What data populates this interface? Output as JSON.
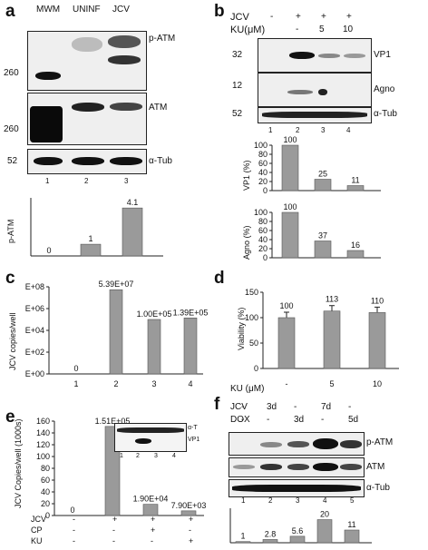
{
  "panels": {
    "a": {
      "letter": "a",
      "lanes_top": [
        "MWM",
        "UNINF",
        "JCV"
      ],
      "markers": [
        "260",
        "260",
        "52"
      ],
      "right_labels": [
        "p-ATM",
        "ATM",
        "α-Tub"
      ],
      "lane_numbers": [
        "1",
        "2",
        "3"
      ],
      "chart_data": {
        "type": "bar",
        "categories": [
          "1",
          "2",
          "3"
        ],
        "values": [
          0,
          1,
          4.1
        ],
        "value_labels": [
          "0",
          "1",
          "4.1"
        ],
        "ylabel": "p-ATM",
        "ylim": [
          0,
          4.5
        ]
      }
    },
    "b": {
      "letter": "b",
      "row1_label": "JCV",
      "row1_vals": [
        "-",
        "+",
        "+",
        "+"
      ],
      "row2_label": "KU(μM)",
      "row2_vals": [
        "",
        "-",
        "5",
        "10"
      ],
      "markers": [
        "32",
        "12",
        "52"
      ],
      "right_labels": [
        "VP1",
        "Agno",
        "α-Tub"
      ],
      "lane_numbers": [
        "1",
        "2",
        "3",
        "4"
      ],
      "chart_vp1": {
        "type": "bar",
        "categories": [
          "2",
          "3",
          "4"
        ],
        "values": [
          100,
          25,
          11
        ],
        "value_labels": [
          "100",
          "25",
          "11"
        ],
        "ylabel": "VP1 (%)",
        "yticks": [
          "100",
          "80",
          "60",
          "40",
          "20",
          "0"
        ],
        "ylim": [
          0,
          100
        ]
      },
      "chart_agno": {
        "type": "bar",
        "categories": [
          "2",
          "3",
          "4"
        ],
        "values": [
          100,
          37,
          16
        ],
        "value_labels": [
          "100",
          "37",
          "16"
        ],
        "ylabel": "Agno (%)",
        "yticks": [
          "100",
          "80",
          "60",
          "40",
          "20",
          "0"
        ],
        "ylim": [
          0,
          100
        ]
      }
    },
    "c": {
      "letter": "c",
      "chart_data": {
        "type": "bar",
        "categories": [
          "1",
          "2",
          "3",
          "4"
        ],
        "values": [
          0,
          53900000,
          100000,
          139000
        ],
        "value_labels": [
          "0",
          "5.39E+07",
          "1.00E+05",
          "1.39E+05"
        ],
        "ylabel": "JCV copies/well",
        "yticks": [
          "E+08",
          "E+06",
          "E+04",
          "E+02",
          "E+00"
        ],
        "scale": "log",
        "ylim": [
          1,
          100000000
        ]
      }
    },
    "d": {
      "letter": "d",
      "chart_data": {
        "type": "bar",
        "categories": [
          "-",
          "5",
          "10"
        ],
        "values": [
          100,
          113,
          110
        ],
        "value_labels": [
          "100",
          "113",
          "110"
        ],
        "ylabel": "Viability (%)",
        "xlabel": "KU (μM)",
        "yticks": [
          "150",
          "100",
          "50",
          "0"
        ],
        "ylim": [
          0,
          150
        ]
      }
    },
    "e": {
      "letter": "e",
      "chart_data": {
        "type": "bar",
        "categories": [
          "1",
          "2",
          "3",
          "4"
        ],
        "values": [
          0,
          151,
          19,
          7.9
        ],
        "value_labels": [
          "0",
          "1.51E+05",
          "1.90E+04",
          "7.90E+03"
        ],
        "ylabel": "JCV Copies/well (1000s)",
        "yticks": [
          "160",
          "140",
          "120",
          "100",
          "80",
          "60",
          "40",
          "20",
          "0"
        ],
        "ylim": [
          0,
          160
        ]
      },
      "rows": [
        {
          "label": "JCV",
          "vals": [
            "-",
            "+",
            "+",
            "+"
          ]
        },
        {
          "label": "CP",
          "vals": [
            "-",
            "-",
            "+",
            "-"
          ]
        },
        {
          "label": "KU",
          "vals": [
            "-",
            "-",
            "-",
            "+"
          ]
        }
      ],
      "inset": {
        "labels": [
          "α-T",
          "VP1"
        ],
        "lanes": [
          "1",
          "2",
          "3",
          "4"
        ]
      }
    },
    "f": {
      "letter": "f",
      "rows": [
        {
          "label": "JCV",
          "vals": [
            "-",
            "3d",
            "-",
            "7d",
            "-"
          ]
        },
        {
          "label": "DOX",
          "vals": [
            "-",
            "-",
            "3d",
            "-",
            "5d"
          ]
        }
      ],
      "right_labels": [
        "p-ATM",
        "ATM",
        "α-Tub"
      ],
      "lane_numbers": [
        "1",
        "2",
        "3",
        "4",
        "5"
      ],
      "chart_data": {
        "type": "bar",
        "categories": [
          "1",
          "2",
          "3",
          "4",
          "5"
        ],
        "values": [
          1,
          2.8,
          5.6,
          20,
          11
        ],
        "value_labels": [
          "1",
          "2.8",
          "5.6",
          "20",
          "11"
        ],
        "ylim": [
          0,
          22
        ]
      }
    }
  }
}
